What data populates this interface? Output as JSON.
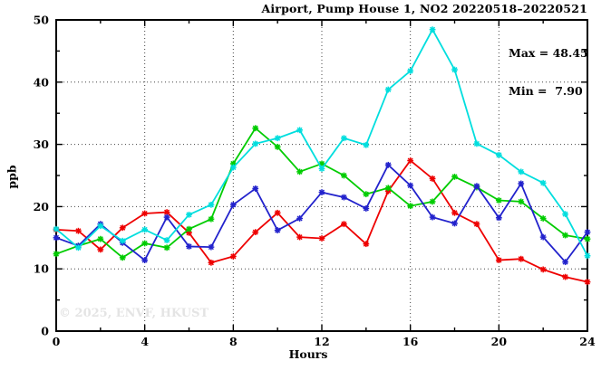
{
  "chart_data": {
    "type": "line",
    "title": "Airport, Pump House 1, NO2 20220518–20220521",
    "annotation": {
      "max_label": "Max = 48.45",
      "min_label": "Min =  7.90",
      "max_value": 48.45,
      "min_value": 7.9
    },
    "watermark": "© 2025, ENVF, HKUST",
    "xlabel": "Hours",
    "ylabel": "ppb",
    "xlim": [
      0,
      24
    ],
    "ylim": [
      0,
      50
    ],
    "x_major_ticks": [
      0,
      4,
      8,
      12,
      16,
      20,
      24
    ],
    "x_minor_ticks": [
      2,
      6,
      10,
      14,
      18,
      22
    ],
    "y_major_ticks": [
      0,
      10,
      20,
      30,
      40,
      50
    ],
    "y_minor_ticks": [
      5,
      15,
      25,
      35,
      45
    ],
    "grid": true,
    "legend_position": "none",
    "marker": "star",
    "x": [
      0,
      1,
      2,
      3,
      4,
      5,
      6,
      7,
      8,
      9,
      10,
      11,
      12,
      13,
      14,
      15,
      16,
      17,
      18,
      19,
      20,
      21,
      22,
      23,
      24
    ],
    "series": [
      {
        "name": "red",
        "color": "#ee0000",
        "values": [
          16.3,
          16.1,
          13.1,
          16.6,
          18.9,
          19.1,
          15.8,
          11.0,
          12.0,
          15.9,
          19.0,
          15.1,
          14.9,
          17.2,
          14.0,
          22.5,
          27.4,
          24.5,
          19.0,
          17.2,
          11.4,
          11.6,
          9.9,
          8.7,
          7.9
        ]
      },
      {
        "name": "green",
        "color": "#00cc00",
        "values": [
          12.4,
          13.7,
          14.8,
          11.8,
          14.1,
          13.4,
          16.4,
          18.0,
          26.9,
          32.6,
          29.6,
          25.6,
          26.9,
          25.0,
          22.0,
          23.0,
          20.1,
          20.8,
          24.8,
          23.1,
          21.0,
          20.8,
          18.1,
          15.4,
          14.8
        ]
      },
      {
        "name": "blue",
        "color": "#2222cc",
        "values": [
          15.0,
          13.7,
          17.2,
          14.2,
          11.4,
          18.3,
          13.6,
          13.5,
          20.3,
          22.9,
          16.2,
          18.1,
          22.3,
          21.5,
          19.7,
          26.7,
          23.4,
          18.3,
          17.3,
          23.3,
          18.2,
          23.7,
          15.1,
          11.1,
          15.9
        ]
      },
      {
        "name": "cyan",
        "color": "#00dede",
        "values": [
          16.4,
          13.4,
          16.9,
          14.5,
          16.3,
          14.6,
          18.7,
          20.3,
          26.3,
          30.1,
          31.0,
          32.3,
          26.1,
          31.0,
          29.9,
          38.8,
          41.8,
          48.45,
          42.0,
          30.1,
          28.3,
          25.6,
          23.8,
          18.8,
          12.1
        ]
      }
    ]
  }
}
